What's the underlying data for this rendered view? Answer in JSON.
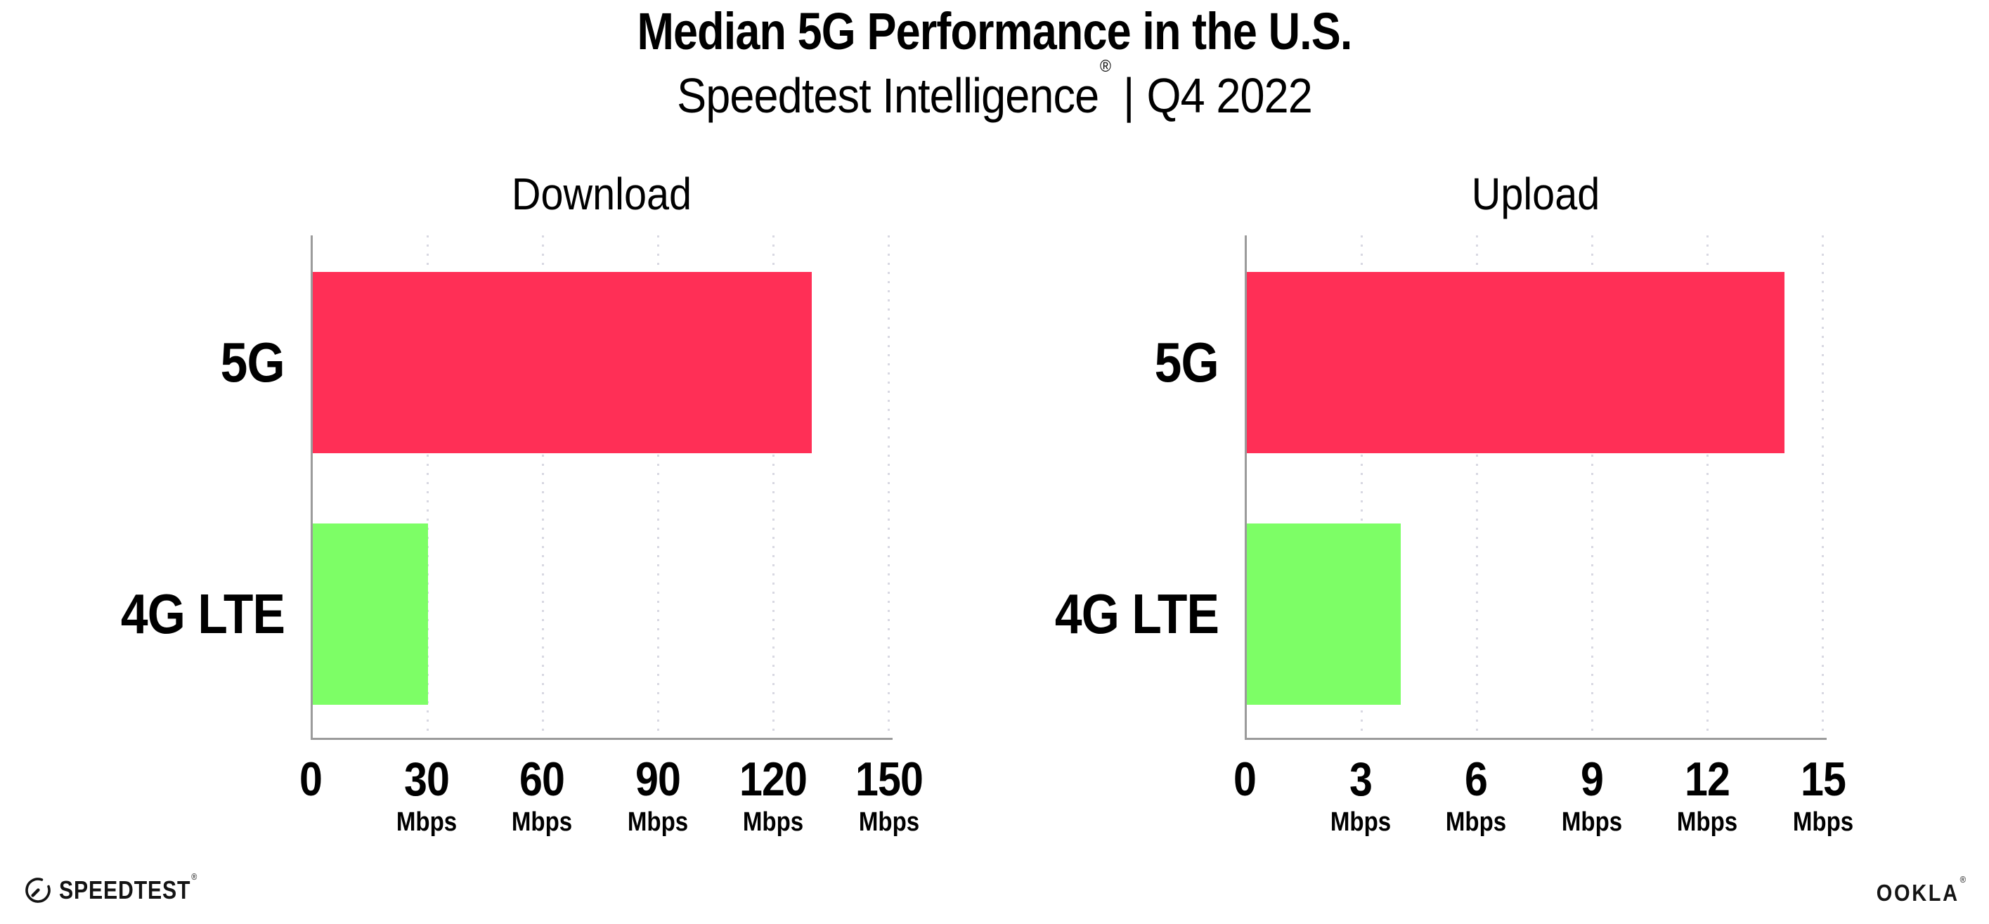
{
  "header": {
    "title": "Median 5G Performance in the U.S.",
    "subtitle_brand": "Speedtest Intelligence",
    "subtitle_registered": "®",
    "subtitle_separator": "|",
    "subtitle_quarter": "Q4 2022"
  },
  "chart_data": [
    {
      "type": "bar",
      "orientation": "horizontal",
      "title": "Download",
      "categories": [
        "5G",
        "4G LTE"
      ],
      "values": [
        130,
        30
      ],
      "unit": "Mbps",
      "ticks": [
        0,
        30,
        60,
        90,
        120,
        150
      ],
      "xlim": [
        0,
        151
      ],
      "bar_colors": [
        "#FF2F56",
        "#7DFE66"
      ],
      "grid": "dotted-vertical",
      "legend": "none"
    },
    {
      "type": "bar",
      "orientation": "horizontal",
      "title": "Upload",
      "categories": [
        "5G",
        "4G LTE"
      ],
      "values": [
        14,
        4
      ],
      "unit": "Mbps",
      "ticks": [
        0,
        3,
        6,
        9,
        12,
        15
      ],
      "xlim": [
        0,
        15.1
      ],
      "bar_colors": [
        "#FF2F56",
        "#7DFE66"
      ],
      "grid": "dotted-vertical",
      "legend": "none"
    }
  ],
  "footer": {
    "speedtest_wordmark": "SPEEDTEST",
    "speedtest_registered": "®",
    "ookla_wordmark": "OOKLA",
    "ookla_registered": "®"
  },
  "colors": {
    "bar_5g": "#FF2F56",
    "bar_4g_lte": "#7DFE66",
    "axis": "#9B9B9B",
    "gridline": "#D8D8E2",
    "text": "#000000",
    "background": "#FFFFFF"
  }
}
